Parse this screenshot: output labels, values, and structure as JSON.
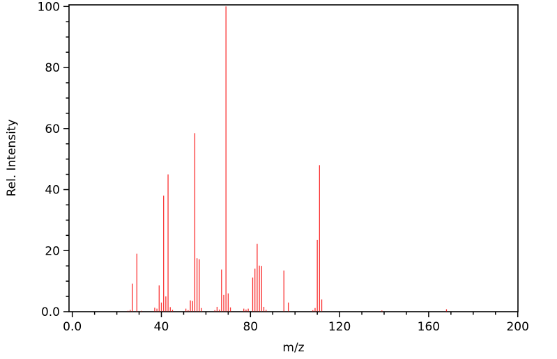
{
  "figure": {
    "background": "#ffffff",
    "axis_color": "#000000",
    "stem_color": "#fa3232"
  },
  "chart_data": {
    "type": "bar",
    "subtype": "mass-spectrum-stick-plot",
    "title": "",
    "xlabel": "m/z",
    "ylabel": "Rel. Intensity",
    "xlim": [
      0,
      200
    ],
    "ylim": [
      0,
      100
    ],
    "grid": false,
    "legend": "none",
    "x_major_ticks": [
      0,
      40,
      80,
      120,
      160,
      200
    ],
    "x_tick_labels": [
      "0.0",
      "40",
      "80",
      "120",
      "160",
      "200"
    ],
    "x_minor_step": 10,
    "y_major_ticks": [
      0,
      20,
      40,
      60,
      80,
      100
    ],
    "y_tick_labels": [
      "0.0",
      "20",
      "40",
      "60",
      "80",
      "100"
    ],
    "y_minor_step": 5,
    "series": [
      {
        "name": "Rel. Intensity",
        "color": "#fa3232",
        "mz": [
          25,
          26,
          27,
          29,
          31,
          37,
          38,
          39,
          40,
          41,
          42,
          43,
          44,
          45,
          51,
          52,
          53,
          54,
          55,
          56,
          57,
          58,
          64,
          65,
          66,
          67,
          68,
          69,
          70,
          71,
          77,
          78,
          79,
          81,
          82,
          83,
          84,
          85,
          86,
          87,
          95,
          97,
          108,
          109,
          110,
          111,
          112,
          139,
          168
        ],
        "intensity": [
          0.3,
          0.6,
          9.2,
          19.0,
          0.3,
          1.3,
          1.0,
          8.6,
          3.0,
          38.0,
          5.0,
          45.0,
          1.5,
          0.6,
          1.0,
          0.5,
          3.7,
          3.5,
          58.5,
          17.5,
          17.2,
          1.2,
          0.5,
          1.6,
          0.7,
          13.8,
          5.5,
          100.0,
          6.0,
          1.4,
          1.0,
          0.7,
          1.0,
          11.2,
          14.1,
          22.2,
          15.1,
          15.0,
          1.6,
          0.6,
          13.5,
          3.0,
          0.5,
          1.2,
          23.5,
          48.0,
          4.0,
          0.4,
          0.8
        ]
      }
    ],
    "base_peak_mz": 69,
    "max_intensity": 100
  }
}
